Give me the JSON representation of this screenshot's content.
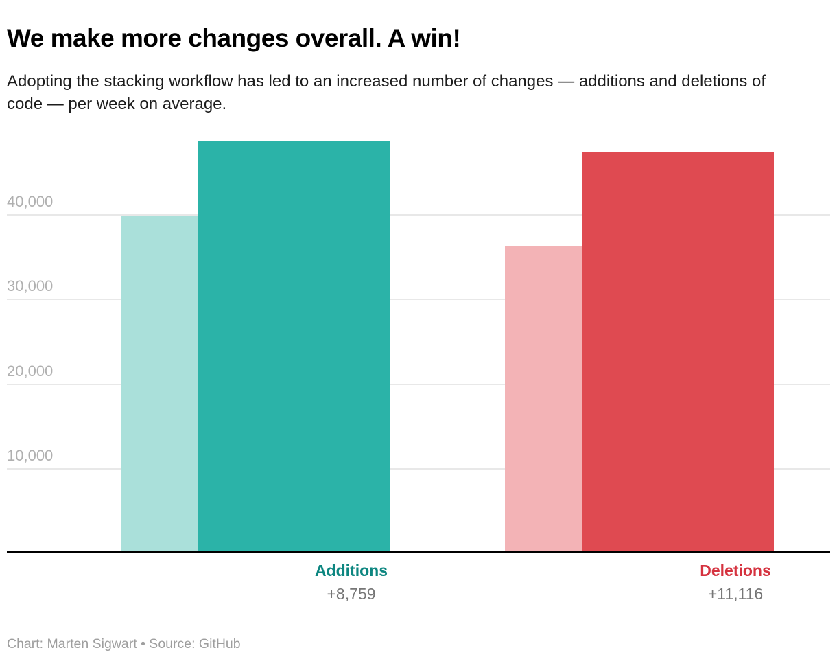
{
  "header": {
    "title": "We make more changes overall. A win!",
    "subtitle": "Adopting the stacking workflow has led to an increased number of changes — additions and deletions of code — per week on average."
  },
  "footer": {
    "credit": "Chart: Marten Sigwart • Source: GitHub"
  },
  "colors": {
    "background": "#ffffff",
    "title_text": "#000000",
    "subtitle_text": "#1d1d1d",
    "gridline": "#e8e8e8",
    "tick_label": "#b0b0b0",
    "axis_line": "#000000",
    "delta_label": "#767676",
    "footer_text": "#9e9e9e"
  },
  "chart_data": {
    "type": "bar",
    "title": "We make more changes overall. A win!",
    "subtitle": "Adopting the stacking workflow has led to an increased number of changes — additions and deletions of code — per week on average.",
    "categories": [
      "Additions",
      "Deletions"
    ],
    "category_label_colors": [
      "#0d8680",
      "#d5323f"
    ],
    "series": [
      {
        "name": "light",
        "values": [
          39950,
          36250
        ],
        "colors": [
          "#aae0da",
          "#f3b3b6"
        ]
      },
      {
        "name": "dark",
        "values": [
          48709,
          47366
        ],
        "colors": [
          "#2bb3a8",
          "#df4a51"
        ]
      }
    ],
    "delta_labels": [
      "+8,759",
      "+11,116"
    ],
    "yticks": [
      {
        "value": 10000,
        "label": "10,000"
      },
      {
        "value": 20000,
        "label": "20,000"
      },
      {
        "value": 30000,
        "label": "30,000"
      },
      {
        "value": 40000,
        "label": "40,000"
      }
    ],
    "ylim": [
      0,
      49000
    ],
    "xlabel": "",
    "ylabel": "",
    "grid": true,
    "legend": "none"
  }
}
